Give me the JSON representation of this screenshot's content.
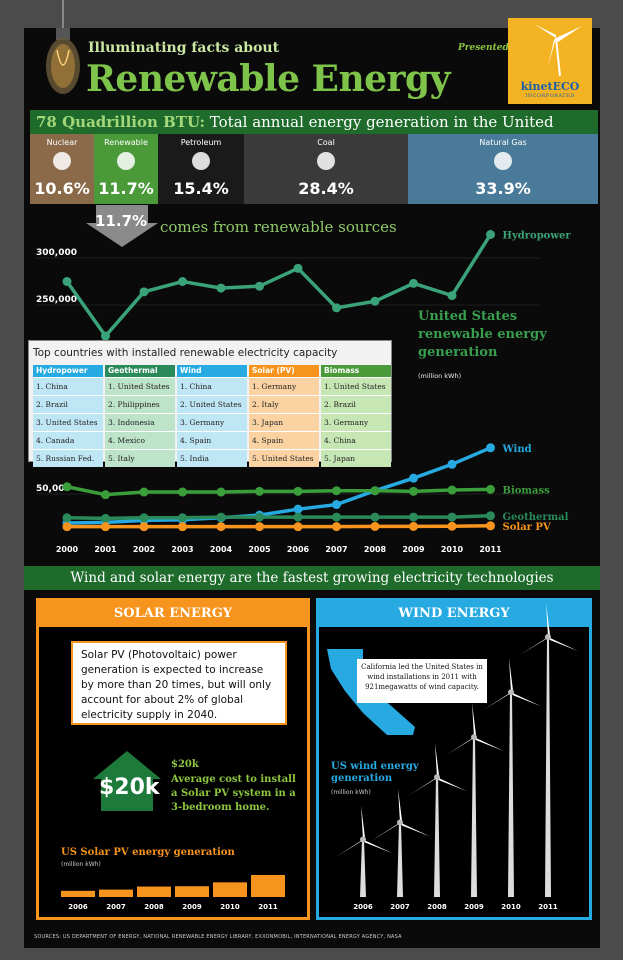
{
  "header": {
    "title_line1": "Illuminating facts about",
    "title_line2": "Renewable Energy",
    "presented_by": "Presented by",
    "logo_name": "kinetECO",
    "logo_sub": "INCORPORATED"
  },
  "banner_top": {
    "bold": "78 Quadrillion BTU:",
    "text": " Total annual energy generation in the United States"
  },
  "energy_mix": [
    {
      "label": "Nuclear",
      "value": "10.6%",
      "color": "#8b6a4a",
      "icon": "radiation-icon"
    },
    {
      "label": "Renewable",
      "value": "11.7%",
      "color": "#4a9a3a",
      "icon": "recycle-icon"
    },
    {
      "label": "Petroleum",
      "value": "15.4%",
      "color": "#1a1a1a",
      "icon": "barrel-icon"
    },
    {
      "label": "Coal",
      "value": "28.4%",
      "color": "#3a3a3a",
      "icon": "coal-cart-icon"
    },
    {
      "label": "Natural Gas",
      "value": "33.9%",
      "color": "#4a7a9a",
      "icon": "flame-icon"
    }
  ],
  "renewable_share": {
    "value": "11.7%",
    "text": "comes from renewable sources"
  },
  "us_chart": {
    "title": "United States renewable energy generation",
    "subtitle": "(million kWh)",
    "y_ticks": [
      "300,000",
      "250,000",
      "50,000"
    ]
  },
  "chart_data": [
    {
      "type": "line",
      "title": "United States renewable energy generation",
      "ylabel": "(million kWh)",
      "x": [
        2000,
        2001,
        2002,
        2003,
        2004,
        2005,
        2006,
        2007,
        2008,
        2009,
        2010,
        2011
      ],
      "series": [
        {
          "name": "Hydropower",
          "color": "#3aa37a",
          "values": [
            275000,
            217000,
            264000,
            275000,
            268000,
            270000,
            289000,
            247000,
            254000,
            273000,
            260000,
            325000
          ]
        },
        {
          "name": "Wind",
          "color": "#27aae1",
          "values": [
            6000,
            7000,
            10000,
            11000,
            14000,
            18000,
            27000,
            34000,
            55000,
            74000,
            95000,
            120000
          ]
        },
        {
          "name": "Biomass",
          "color": "#3a9e3a",
          "values": [
            61000,
            49000,
            53000,
            53000,
            53000,
            54000,
            54000,
            55000,
            55000,
            54000,
            56000,
            57000
          ]
        },
        {
          "name": "Geothermal",
          "color": "#2a8a5a",
          "values": [
            14000,
            13000,
            14000,
            14000,
            15000,
            15000,
            15000,
            15000,
            15000,
            15000,
            15000,
            17000
          ]
        },
        {
          "name": "Solar PV",
          "color": "#f7941d",
          "values": [
            500,
            500,
            500,
            500,
            600,
            600,
            500,
            600,
            900,
            900,
            1200,
            1800
          ]
        }
      ]
    },
    {
      "type": "bar",
      "title": "US Solar PV energy generation",
      "ylabel": "(million kWh)",
      "categories": [
        "2006",
        "2007",
        "2008",
        "2009",
        "2010",
        "2011"
      ],
      "values": [
        508,
        612,
        864,
        891,
        1212,
        1818
      ]
    },
    {
      "type": "bar",
      "title": "US wind energy generation",
      "ylabel": "(million kWh)",
      "categories": [
        "2006",
        "2007",
        "2008",
        "2009",
        "2010",
        "2011"
      ],
      "values": [
        26589,
        34450,
        55363,
        73886,
        94652,
        120177
      ]
    }
  ],
  "countries": {
    "title": "Top countries with installed renewable electricity capacity",
    "columns": [
      {
        "head": "Hydropower",
        "color": "#27aae1",
        "bg": "#bfe6f5",
        "items": [
          "1. China",
          "2. Brazil",
          "3. United States",
          "4. Canada",
          "5. Russian Fed."
        ]
      },
      {
        "head": "Geothermal",
        "color": "#2a8a5a",
        "bg": "#bde3c9",
        "items": [
          "1. United States",
          "2. Philippines",
          "3. Indonesia",
          "4. Mexico",
          "5. Italy"
        ]
      },
      {
        "head": "Wind",
        "color": "#27aae1",
        "bg": "#bfe6f5",
        "items": [
          "1. China",
          "2. United States",
          "3. Germany",
          "4. Spain",
          "5. India"
        ]
      },
      {
        "head": "Solar (PV)",
        "color": "#f7941d",
        "bg": "#fbd3a3",
        "items": [
          "1. Germany",
          "2. Italy",
          "3. Japan",
          "4. Spain",
          "5. United States"
        ]
      },
      {
        "head": "Biomass",
        "color": "#4a9a3a",
        "bg": "#c6e6b4",
        "items": [
          "1. United States",
          "2. Brazil",
          "3. Germany",
          "4. China",
          "5. Japan"
        ]
      }
    ]
  },
  "banner_mid": "Wind and solar energy are the fastest growing electricity technologies",
  "solar": {
    "head": "SOLAR ENERGY",
    "box": "Solar PV (Photovoltaic) power generation is expected to increase by more than 20 times, but will only account for about 2% of global electricity supply in 2040.",
    "house_price": "$20k",
    "cost_title": "$20k",
    "cost_text": "Average cost to install a Solar PV system in a 3-bedroom home.",
    "chart_title": "US Solar PV energy generation",
    "chart_sub": "(million kWh)"
  },
  "wind": {
    "head": "WIND ENERGY",
    "california": "California led the United States in wind installations in 2011 with 921megawatts of wind capacity.",
    "chart_title": "US wind energy generation",
    "chart_sub": "(million kWh)"
  },
  "sources": "SOURCES: US DEPARTMENT OF ENERGY, NATIONAL RENEWABLE ENERGY LIBRARY, EXXONMOBIL, INTERNATIONAL ENERGY AGENCY, NASA"
}
